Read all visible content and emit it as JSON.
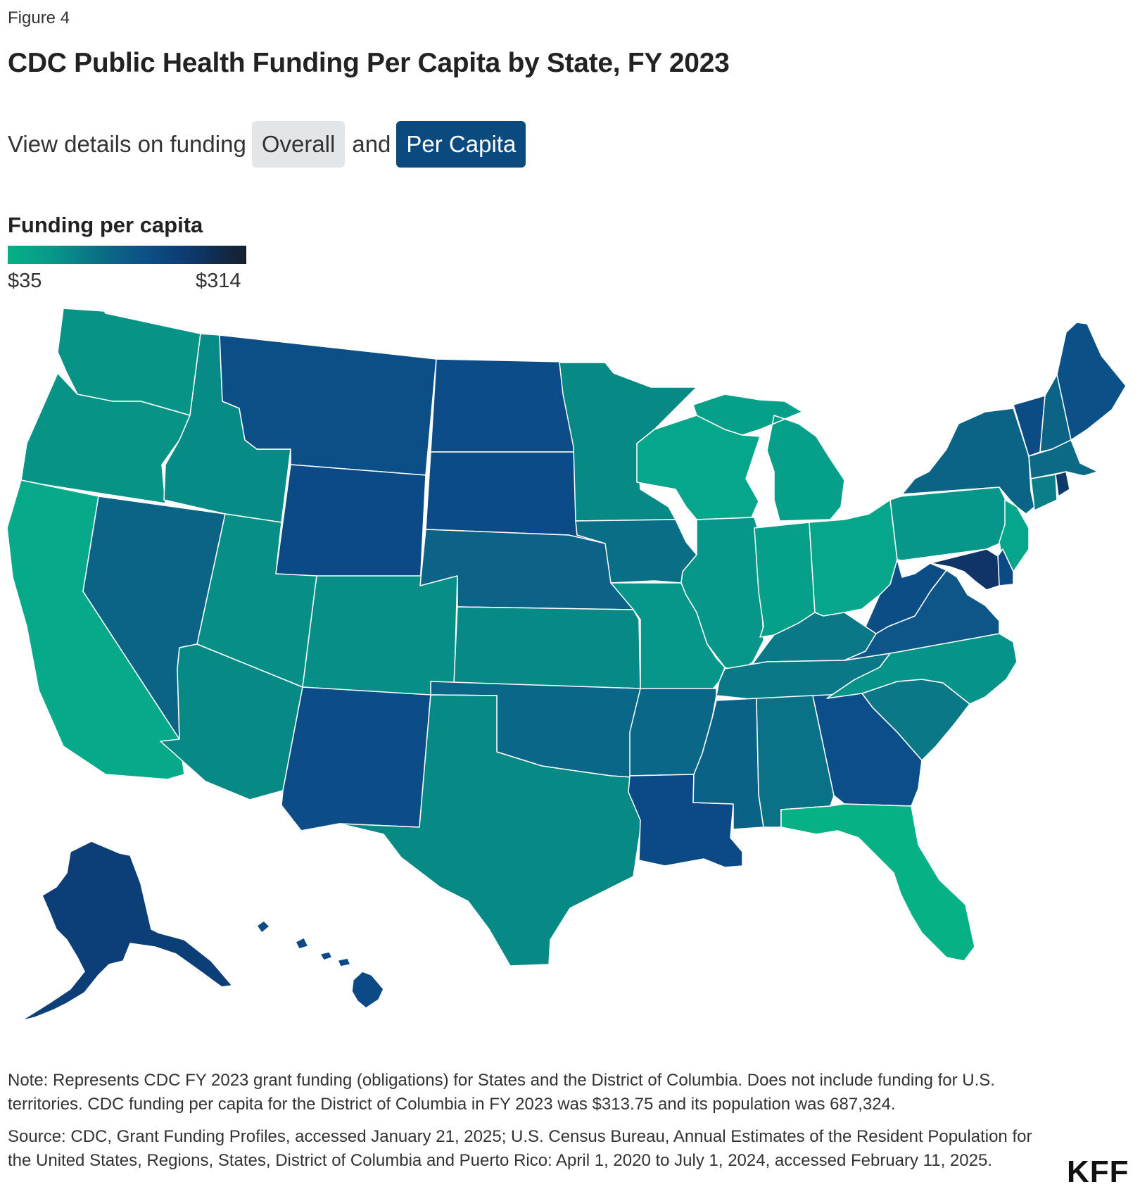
{
  "figure_label": "Figure 4",
  "title": "CDC Public Health Funding Per Capita by State, FY 2023",
  "controls": {
    "prefix": "View details on funding",
    "option_overall": "Overall",
    "connector": "and",
    "option_per_capita": "Per Capita",
    "selected": "Per Capita"
  },
  "legend": {
    "title": "Funding per capita",
    "min_label": "$35",
    "max_label": "$314",
    "color_low": "#06b185",
    "color_high": "#16202b"
  },
  "map": {
    "states": [
      {
        "id": "WA",
        "color": "#079487"
      },
      {
        "id": "OR",
        "color": "#079487"
      },
      {
        "id": "CA",
        "color": "#06a98a"
      },
      {
        "id": "ID",
        "color": "#078b86"
      },
      {
        "id": "NV",
        "color": "#0b6486"
      },
      {
        "id": "MT",
        "color": "#0c4f87"
      },
      {
        "id": "WY",
        "color": "#0c4a86"
      },
      {
        "id": "UT",
        "color": "#068f86"
      },
      {
        "id": "AZ",
        "color": "#078a86"
      },
      {
        "id": "CO",
        "color": "#068f86"
      },
      {
        "id": "NM",
        "color": "#0c4c87"
      },
      {
        "id": "ND",
        "color": "#0c4d87"
      },
      {
        "id": "SD",
        "color": "#0c4c86"
      },
      {
        "id": "NE",
        "color": "#0c6387"
      },
      {
        "id": "KS",
        "color": "#078a86"
      },
      {
        "id": "OK",
        "color": "#0b6787"
      },
      {
        "id": "TX",
        "color": "#078a86"
      },
      {
        "id": "MN",
        "color": "#078a86"
      },
      {
        "id": "IA",
        "color": "#0b6e87"
      },
      {
        "id": "MO",
        "color": "#06968a"
      },
      {
        "id": "AR",
        "color": "#0b6788"
      },
      {
        "id": "LA",
        "color": "#0c4a86"
      },
      {
        "id": "WI",
        "color": "#06a68a"
      },
      {
        "id": "IL",
        "color": "#06968a"
      },
      {
        "id": "MI",
        "color": "#06a08a"
      },
      {
        "id": "IN",
        "color": "#06a08a"
      },
      {
        "id": "OH",
        "color": "#06a68a"
      },
      {
        "id": "KY",
        "color": "#0b7888"
      },
      {
        "id": "TN",
        "color": "#0b7888"
      },
      {
        "id": "MS",
        "color": "#0b6287"
      },
      {
        "id": "AL",
        "color": "#0b7186"
      },
      {
        "id": "GA",
        "color": "#0c4e87"
      },
      {
        "id": "FL",
        "color": "#06b185"
      },
      {
        "id": "SC",
        "color": "#0b7888"
      },
      {
        "id": "NC",
        "color": "#06948a"
      },
      {
        "id": "VA",
        "color": "#0c5787"
      },
      {
        "id": "WV",
        "color": "#0c4d86"
      },
      {
        "id": "PA",
        "color": "#06968a"
      },
      {
        "id": "NY",
        "color": "#0b6486"
      },
      {
        "id": "VT",
        "color": "#0c4c85"
      },
      {
        "id": "NH",
        "color": "#0b6486"
      },
      {
        "id": "ME",
        "color": "#0c5088"
      },
      {
        "id": "MA",
        "color": "#0b6b87"
      },
      {
        "id": "CT",
        "color": "#0b7f88"
      },
      {
        "id": "RI",
        "color": "#0e3a6b"
      },
      {
        "id": "NJ",
        "color": "#06a68a"
      },
      {
        "id": "DE",
        "color": "#0c4a86"
      },
      {
        "id": "MD",
        "color": "#0e3566"
      },
      {
        "id": "AK",
        "color": "#0c3f78"
      },
      {
        "id": "HI",
        "color": "#0c4a86"
      }
    ]
  },
  "note": "Note: Represents CDC FY 2023 grant funding (obligations) for States and the District of Columbia. Does not include funding for U.S. territories. CDC funding per capita for the District of Columbia in FY 2023 was $313.75 and its population was 687,324.",
  "source": "Source: CDC, Grant Funding Profiles, accessed January 21, 2025; U.S. Census Bureau, Annual Estimates of the Resident Population for the United States, Regions, States, District of Columbia and Puerto Rico: April 1, 2020 to July 1, 2024, accessed February 11, 2025.",
  "logo": "KFF"
}
